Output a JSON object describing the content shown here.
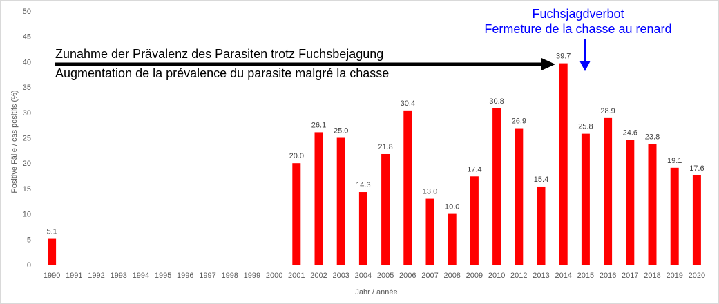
{
  "chart_data": {
    "type": "bar",
    "title": "",
    "xlabel": "Jahr / année",
    "ylabel": "Positive Fälle / cas positifs (%)",
    "ylim": [
      0,
      50
    ],
    "yticks": [
      0,
      5,
      10,
      15,
      20,
      25,
      30,
      35,
      40,
      45,
      50
    ],
    "grid": false,
    "bar_color": "#ff0000",
    "categories": [
      "1990",
      "1991",
      "1992",
      "1993",
      "1994",
      "1995",
      "1996",
      "1997",
      "1998",
      "1999",
      "2000",
      "2001",
      "2002",
      "2003",
      "2004",
      "2005",
      "2006",
      "2007",
      "2008",
      "2009",
      "2010",
      "2012",
      "2013",
      "2014",
      "2015",
      "2016",
      "2017",
      "2018",
      "2019",
      "2020"
    ],
    "values": [
      5.1,
      null,
      null,
      null,
      null,
      null,
      null,
      null,
      null,
      null,
      null,
      20.0,
      26.1,
      25.0,
      14.3,
      21.8,
      30.4,
      13.0,
      10.0,
      17.4,
      30.8,
      26.9,
      15.4,
      39.7,
      25.8,
      28.9,
      24.6,
      23.8,
      19.1,
      17.6
    ],
    "value_labels": [
      "5.1",
      "",
      "",
      "",
      "",
      "",
      "",
      "",
      "",
      "",
      "",
      "20.0",
      "26.1",
      "25.0",
      "14.3",
      "21.8",
      "30.4",
      "13.0",
      "10.0",
      "17.4",
      "30.8",
      "26.9",
      "15.4",
      "39.7",
      "25.8",
      "28.9",
      "24.6",
      "23.8",
      "19.1",
      "17.6"
    ],
    "annotations": {
      "trend_line1": "Zunahme der Prävalenz des Parasiten trotz Fuchsbejagung",
      "trend_line2": "Augmentation de la prévalence du parasite malgré la chasse",
      "trend_arrow_color": "#000000",
      "ban_line1": "Fuchsjagdverbot",
      "ban_line2": "Fermeture de la chasse au renard",
      "ban_color": "#0000ff",
      "ban_category": "2015"
    }
  }
}
